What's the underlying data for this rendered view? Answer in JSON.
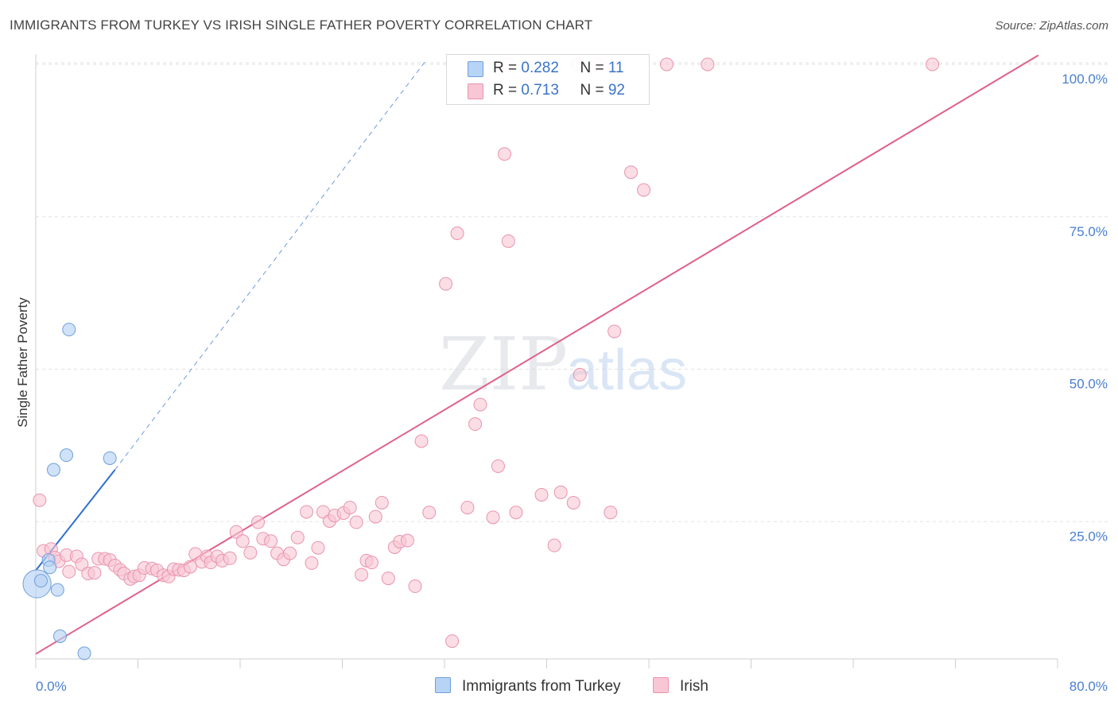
{
  "title": "IMMIGRANTS FROM TURKEY VS IRISH SINGLE FATHER POVERTY CORRELATION CHART",
  "source": "Source: ZipAtlas.com",
  "watermark": {
    "zip": "ZIP",
    "atlas": "atlas"
  },
  "colors": {
    "turkey_fill": "#b7d3f5",
    "turkey_stroke": "#6f9fdc",
    "turkey_line": "#2f6fd0",
    "irish_fill": "#f8c6d4",
    "irish_stroke": "#e994b0",
    "irish_line": "#e0608a",
    "grid": "#e2e2e2",
    "tick_label": "#4a7fd0"
  },
  "legend": {
    "rows": [
      {
        "r_label": "R = ",
        "r_value": "0.282",
        "n_label": "N = ",
        "n_value": "11"
      },
      {
        "r_label": "R = ",
        "r_value": "0.713",
        "n_label": "N = ",
        "n_value": "92"
      }
    ]
  },
  "bottom_legend": {
    "turkey": "Immigrants from Turkey",
    "irish": "Irish"
  },
  "chart_data": {
    "type": "scatter",
    "title": "IMMIGRANTS FROM TURKEY VS IRISH SINGLE FATHER POVERTY CORRELATION CHART",
    "xlabel": "",
    "ylabel": "Single Father Poverty",
    "xlim": [
      0,
      80
    ],
    "ylim": [
      0,
      102
    ],
    "x_tick_labels": [
      "0.0%",
      "80.0%"
    ],
    "y_ticks": [
      25,
      50,
      75,
      100
    ],
    "y_tick_labels": [
      "25.0%",
      "50.0%",
      "75.0%",
      "100.0%"
    ],
    "grid": true,
    "legend_position": "top-center",
    "series": [
      {
        "name": "Immigrants from Turkey",
        "r": 0.282,
        "n": 11,
        "points": [
          [
            0.1,
            14.8,
            2.2
          ],
          [
            0.4,
            15.3,
            1
          ],
          [
            1.0,
            18.7,
            1
          ],
          [
            1.1,
            17.5,
            1
          ],
          [
            1.4,
            33.5,
            1
          ],
          [
            1.7,
            13.8,
            1
          ],
          [
            1.9,
            6.2,
            1
          ],
          [
            2.4,
            35.9,
            1
          ],
          [
            2.6,
            56.5,
            1
          ],
          [
            3.8,
            3.4,
            1
          ],
          [
            5.8,
            35.4,
            1
          ]
        ],
        "trend_solid": [
          [
            0,
            17.0
          ],
          [
            6.2,
            33.5
          ]
        ],
        "trend_dashed": [
          [
            6.2,
            33.5
          ],
          [
            30.5,
            100.5
          ]
        ]
      },
      {
        "name": "Irish",
        "r": 0.713,
        "n": 92,
        "points": [
          [
            0.3,
            28.5
          ],
          [
            0.6,
            20.2
          ],
          [
            1.2,
            20.5
          ],
          [
            1.5,
            19.1
          ],
          [
            1.8,
            18.5
          ],
          [
            2.4,
            19.5
          ],
          [
            2.6,
            16.8
          ],
          [
            3.2,
            19.3
          ],
          [
            3.6,
            18.0
          ],
          [
            4.1,
            16.5
          ],
          [
            4.6,
            16.6
          ],
          [
            4.9,
            18.9
          ],
          [
            5.4,
            18.9
          ],
          [
            5.8,
            18.7
          ],
          [
            6.2,
            17.8
          ],
          [
            6.6,
            17.1
          ],
          [
            6.9,
            16.5
          ],
          [
            7.4,
            15.6
          ],
          [
            7.7,
            16.0
          ],
          [
            8.1,
            16.2
          ],
          [
            8.5,
            17.4
          ],
          [
            9.1,
            17.3
          ],
          [
            9.5,
            17.0
          ],
          [
            10.0,
            16.2
          ],
          [
            10.4,
            16.0
          ],
          [
            10.8,
            17.2
          ],
          [
            11.2,
            17.1
          ],
          [
            11.6,
            17.0
          ],
          [
            12.1,
            17.6
          ],
          [
            12.5,
            19.7
          ],
          [
            13.0,
            18.4
          ],
          [
            13.4,
            19.3
          ],
          [
            13.7,
            18.3
          ],
          [
            14.2,
            19.3
          ],
          [
            14.6,
            18.6
          ],
          [
            15.2,
            19.0
          ],
          [
            15.7,
            23.3
          ],
          [
            16.2,
            21.8
          ],
          [
            16.8,
            19.9
          ],
          [
            17.4,
            24.9
          ],
          [
            17.8,
            22.2
          ],
          [
            18.4,
            21.8
          ],
          [
            18.9,
            19.8
          ],
          [
            19.4,
            18.8
          ],
          [
            19.9,
            19.8
          ],
          [
            20.5,
            22.4
          ],
          [
            21.2,
            26.6
          ],
          [
            21.6,
            18.2
          ],
          [
            22.1,
            20.7
          ],
          [
            22.5,
            26.6
          ],
          [
            23.0,
            25.1
          ],
          [
            23.4,
            26.0
          ],
          [
            24.1,
            26.4
          ],
          [
            24.6,
            27.3
          ],
          [
            25.1,
            24.9
          ],
          [
            25.5,
            16.3
          ],
          [
            25.9,
            18.6
          ],
          [
            26.3,
            18.3
          ],
          [
            26.6,
            25.8
          ],
          [
            27.1,
            28.1
          ],
          [
            27.6,
            15.7
          ],
          [
            28.1,
            20.8
          ],
          [
            28.5,
            21.7
          ],
          [
            29.1,
            21.9
          ],
          [
            29.7,
            14.4
          ],
          [
            30.2,
            38.2
          ],
          [
            30.8,
            26.5
          ],
          [
            32.1,
            64.0
          ],
          [
            32.6,
            5.4
          ],
          [
            33.0,
            72.3
          ],
          [
            33.8,
            27.3
          ],
          [
            34.4,
            41.0
          ],
          [
            34.8,
            44.2
          ],
          [
            35.8,
            25.7
          ],
          [
            36.2,
            34.1
          ],
          [
            36.7,
            85.3
          ],
          [
            37.0,
            71.0
          ],
          [
            37.6,
            26.5
          ],
          [
            39.6,
            29.4
          ],
          [
            40.6,
            21.1
          ],
          [
            41.1,
            29.8
          ],
          [
            42.1,
            28.1
          ],
          [
            42.6,
            49.1
          ],
          [
            45.0,
            26.5
          ],
          [
            45.3,
            56.2
          ],
          [
            46.6,
            82.3
          ],
          [
            47.6,
            79.4
          ],
          [
            37.0,
            100
          ],
          [
            42.4,
            100
          ],
          [
            44.0,
            100
          ],
          [
            49.4,
            100
          ],
          [
            52.6,
            100
          ],
          [
            70.2,
            100
          ]
        ],
        "trend": [
          [
            0,
            3.3
          ],
          [
            78.5,
            101.5
          ]
        ]
      }
    ]
  }
}
